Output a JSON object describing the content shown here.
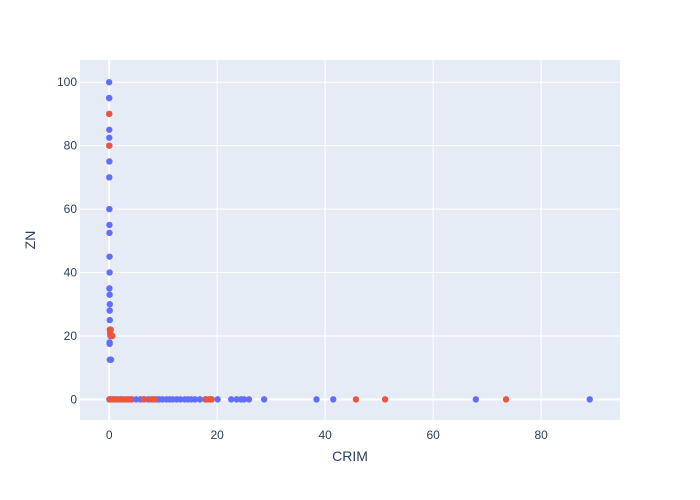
{
  "chart_data": {
    "type": "scatter",
    "title": "",
    "xlabel": "CRIM",
    "ylabel": "ZN",
    "xlim": [
      -5.4,
      94.6
    ],
    "ylim": [
      -6.5,
      107
    ],
    "xticks": [
      0,
      20,
      40,
      60,
      80
    ],
    "yticks": [
      0,
      20,
      40,
      60,
      80,
      100
    ],
    "grid": true,
    "legend": "none",
    "colors": {
      "plot_bg": "#e5ecf6",
      "grid": "#ffffff",
      "text": "#2a3f5f",
      "series_a": "#636efa",
      "series_b": "#ef553b"
    },
    "series": [
      {
        "color": "#636efa",
        "points": [
          [
            0.0,
            100
          ],
          [
            0.0,
            95
          ],
          [
            0.01,
            95
          ],
          [
            0.01,
            90
          ],
          [
            0.02,
            85
          ],
          [
            0.02,
            82.5
          ],
          [
            0.03,
            80
          ],
          [
            0.04,
            75
          ],
          [
            0.03,
            70
          ],
          [
            0.04,
            60
          ],
          [
            0.05,
            55
          ],
          [
            0.06,
            52.5
          ],
          [
            0.07,
            45
          ],
          [
            0.08,
            40
          ],
          [
            0.05,
            35
          ],
          [
            0.09,
            33
          ],
          [
            0.12,
            30
          ],
          [
            0.1,
            28
          ],
          [
            0.11,
            25
          ],
          [
            0.14,
            22
          ],
          [
            0.2,
            21
          ],
          [
            0.25,
            20
          ],
          [
            0.08,
            18
          ],
          [
            0.09,
            17.5
          ],
          [
            0.13,
            12.5
          ],
          [
            0.2,
            12.5
          ],
          [
            0.35,
            12.5
          ],
          [
            0.02,
            0
          ],
          [
            0.2,
            0
          ],
          [
            0.5,
            0
          ],
          [
            1.0,
            0
          ],
          [
            1.5,
            0
          ],
          [
            2.0,
            0
          ],
          [
            2.5,
            0
          ],
          [
            3.5,
            0
          ],
          [
            4.2,
            0
          ],
          [
            5.0,
            0
          ],
          [
            5.8,
            0
          ],
          [
            6.5,
            0
          ],
          [
            7.2,
            0
          ],
          [
            8.1,
            0
          ],
          [
            8.8,
            0
          ],
          [
            9.3,
            0
          ],
          [
            9.9,
            0
          ],
          [
            10.6,
            0
          ],
          [
            11.2,
            0
          ],
          [
            11.8,
            0
          ],
          [
            12.5,
            0
          ],
          [
            13.2,
            0
          ],
          [
            14.0,
            0
          ],
          [
            14.6,
            0
          ],
          [
            15.2,
            0
          ],
          [
            15.9,
            0
          ],
          [
            16.8,
            0
          ],
          [
            17.8,
            0
          ],
          [
            18.8,
            0
          ],
          [
            20.1,
            0
          ],
          [
            22.6,
            0
          ],
          [
            23.6,
            0
          ],
          [
            24.4,
            0
          ],
          [
            25.0,
            0
          ],
          [
            25.9,
            0
          ],
          [
            28.7,
            0
          ],
          [
            38.4,
            0
          ],
          [
            41.5,
            0
          ],
          [
            67.9,
            0
          ],
          [
            89.0,
            0
          ]
        ]
      },
      {
        "color": "#ef553b",
        "points": [
          [
            0.02,
            90
          ],
          [
            0.03,
            80
          ],
          [
            0.3,
            22
          ],
          [
            0.15,
            22
          ],
          [
            0.45,
            20
          ],
          [
            0.6,
            20
          ],
          [
            0.2,
            20.5
          ],
          [
            0.1,
            0
          ],
          [
            0.8,
            0
          ],
          [
            1.4,
            0
          ],
          [
            2.2,
            0
          ],
          [
            2.9,
            0
          ],
          [
            3.4,
            0
          ],
          [
            4.0,
            0
          ],
          [
            6.4,
            0
          ],
          [
            7.7,
            0
          ],
          [
            8.4,
            0
          ],
          [
            18.0,
            0
          ],
          [
            18.5,
            0
          ],
          [
            19.0,
            0
          ],
          [
            45.7,
            0
          ],
          [
            51.1,
            0
          ],
          [
            73.5,
            0
          ]
        ]
      }
    ]
  }
}
